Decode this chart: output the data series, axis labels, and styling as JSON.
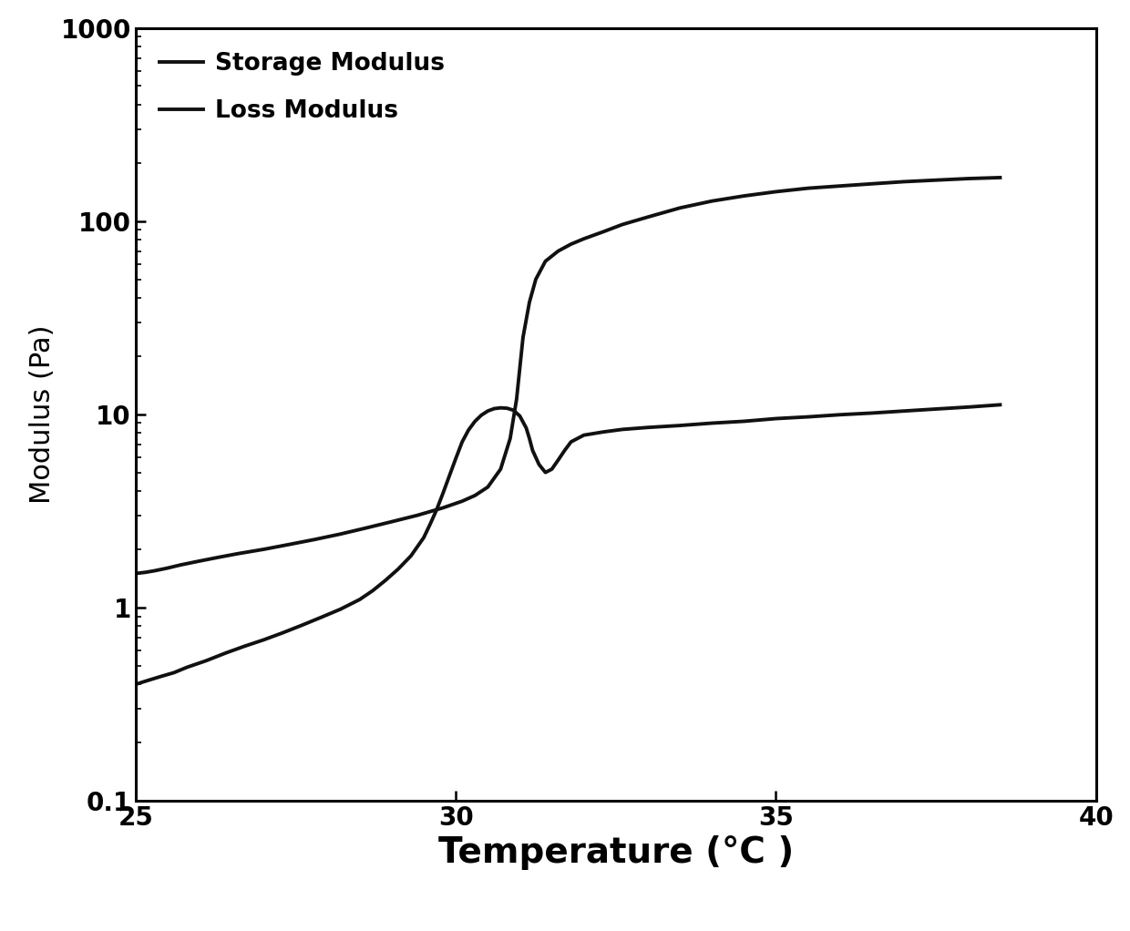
{
  "title": "",
  "xlabel": "Temperature (°C )",
  "ylabel": "Modulus (Pa)",
  "xlim": [
    25,
    40
  ],
  "ylim": [
    0.1,
    1000
  ],
  "xticks": [
    25,
    30,
    35,
    40
  ],
  "background_color": "#ffffff",
  "line_color": "#111111",
  "legend_entries": [
    "Storage Modulus",
    "Loss Modulus"
  ],
  "xlabel_fontsize": 28,
  "ylabel_fontsize": 22,
  "tick_fontsize": 20,
  "legend_fontsize": 19,
  "line_width": 2.8,
  "storage_modulus_x": [
    25.0,
    25.15,
    25.3,
    25.5,
    25.7,
    26.0,
    26.3,
    26.6,
    27.0,
    27.4,
    27.8,
    28.2,
    28.6,
    29.0,
    29.4,
    29.8,
    30.1,
    30.3,
    30.5,
    30.7,
    30.85,
    30.95,
    31.05,
    31.15,
    31.25,
    31.4,
    31.6,
    31.8,
    32.0,
    32.3,
    32.6,
    33.0,
    33.5,
    34.0,
    34.5,
    35.0,
    35.5,
    36.0,
    36.5,
    37.0,
    37.5,
    38.0,
    38.5
  ],
  "storage_modulus_y": [
    1.5,
    1.52,
    1.55,
    1.6,
    1.66,
    1.74,
    1.82,
    1.9,
    2.0,
    2.12,
    2.25,
    2.4,
    2.58,
    2.78,
    3.0,
    3.28,
    3.55,
    3.8,
    4.2,
    5.2,
    7.5,
    12.0,
    25.0,
    38.0,
    50.0,
    62.0,
    70.0,
    76.0,
    81.0,
    88.0,
    96.0,
    105.0,
    117.0,
    127.0,
    135.0,
    142.0,
    148.0,
    152.0,
    156.0,
    160.0,
    163.0,
    166.0,
    168.0
  ],
  "loss_modulus_x": [
    25.0,
    25.1,
    25.2,
    25.4,
    25.6,
    25.8,
    26.1,
    26.4,
    26.7,
    27.0,
    27.3,
    27.6,
    27.9,
    28.2,
    28.5,
    28.7,
    28.9,
    29.1,
    29.3,
    29.5,
    29.6,
    29.7,
    29.8,
    29.9,
    30.0,
    30.1,
    30.2,
    30.3,
    30.4,
    30.5,
    30.6,
    30.7,
    30.8,
    30.9,
    31.0,
    31.1,
    31.15,
    31.2,
    31.3,
    31.4,
    31.5,
    31.6,
    31.7,
    31.8,
    32.0,
    32.3,
    32.6,
    33.0,
    33.5,
    34.0,
    34.5,
    35.0,
    35.5,
    36.0,
    36.5,
    37.0,
    37.5,
    38.0,
    38.5
  ],
  "loss_modulus_y": [
    0.4,
    0.41,
    0.42,
    0.44,
    0.46,
    0.49,
    0.53,
    0.58,
    0.63,
    0.68,
    0.74,
    0.81,
    0.89,
    0.98,
    1.1,
    1.22,
    1.38,
    1.58,
    1.85,
    2.3,
    2.7,
    3.2,
    3.9,
    4.8,
    5.9,
    7.2,
    8.3,
    9.2,
    9.9,
    10.4,
    10.7,
    10.8,
    10.75,
    10.5,
    9.8,
    8.5,
    7.5,
    6.5,
    5.5,
    5.0,
    5.2,
    5.8,
    6.5,
    7.2,
    7.8,
    8.1,
    8.35,
    8.55,
    8.75,
    9.0,
    9.2,
    9.5,
    9.7,
    9.95,
    10.15,
    10.4,
    10.65,
    10.9,
    11.2
  ]
}
